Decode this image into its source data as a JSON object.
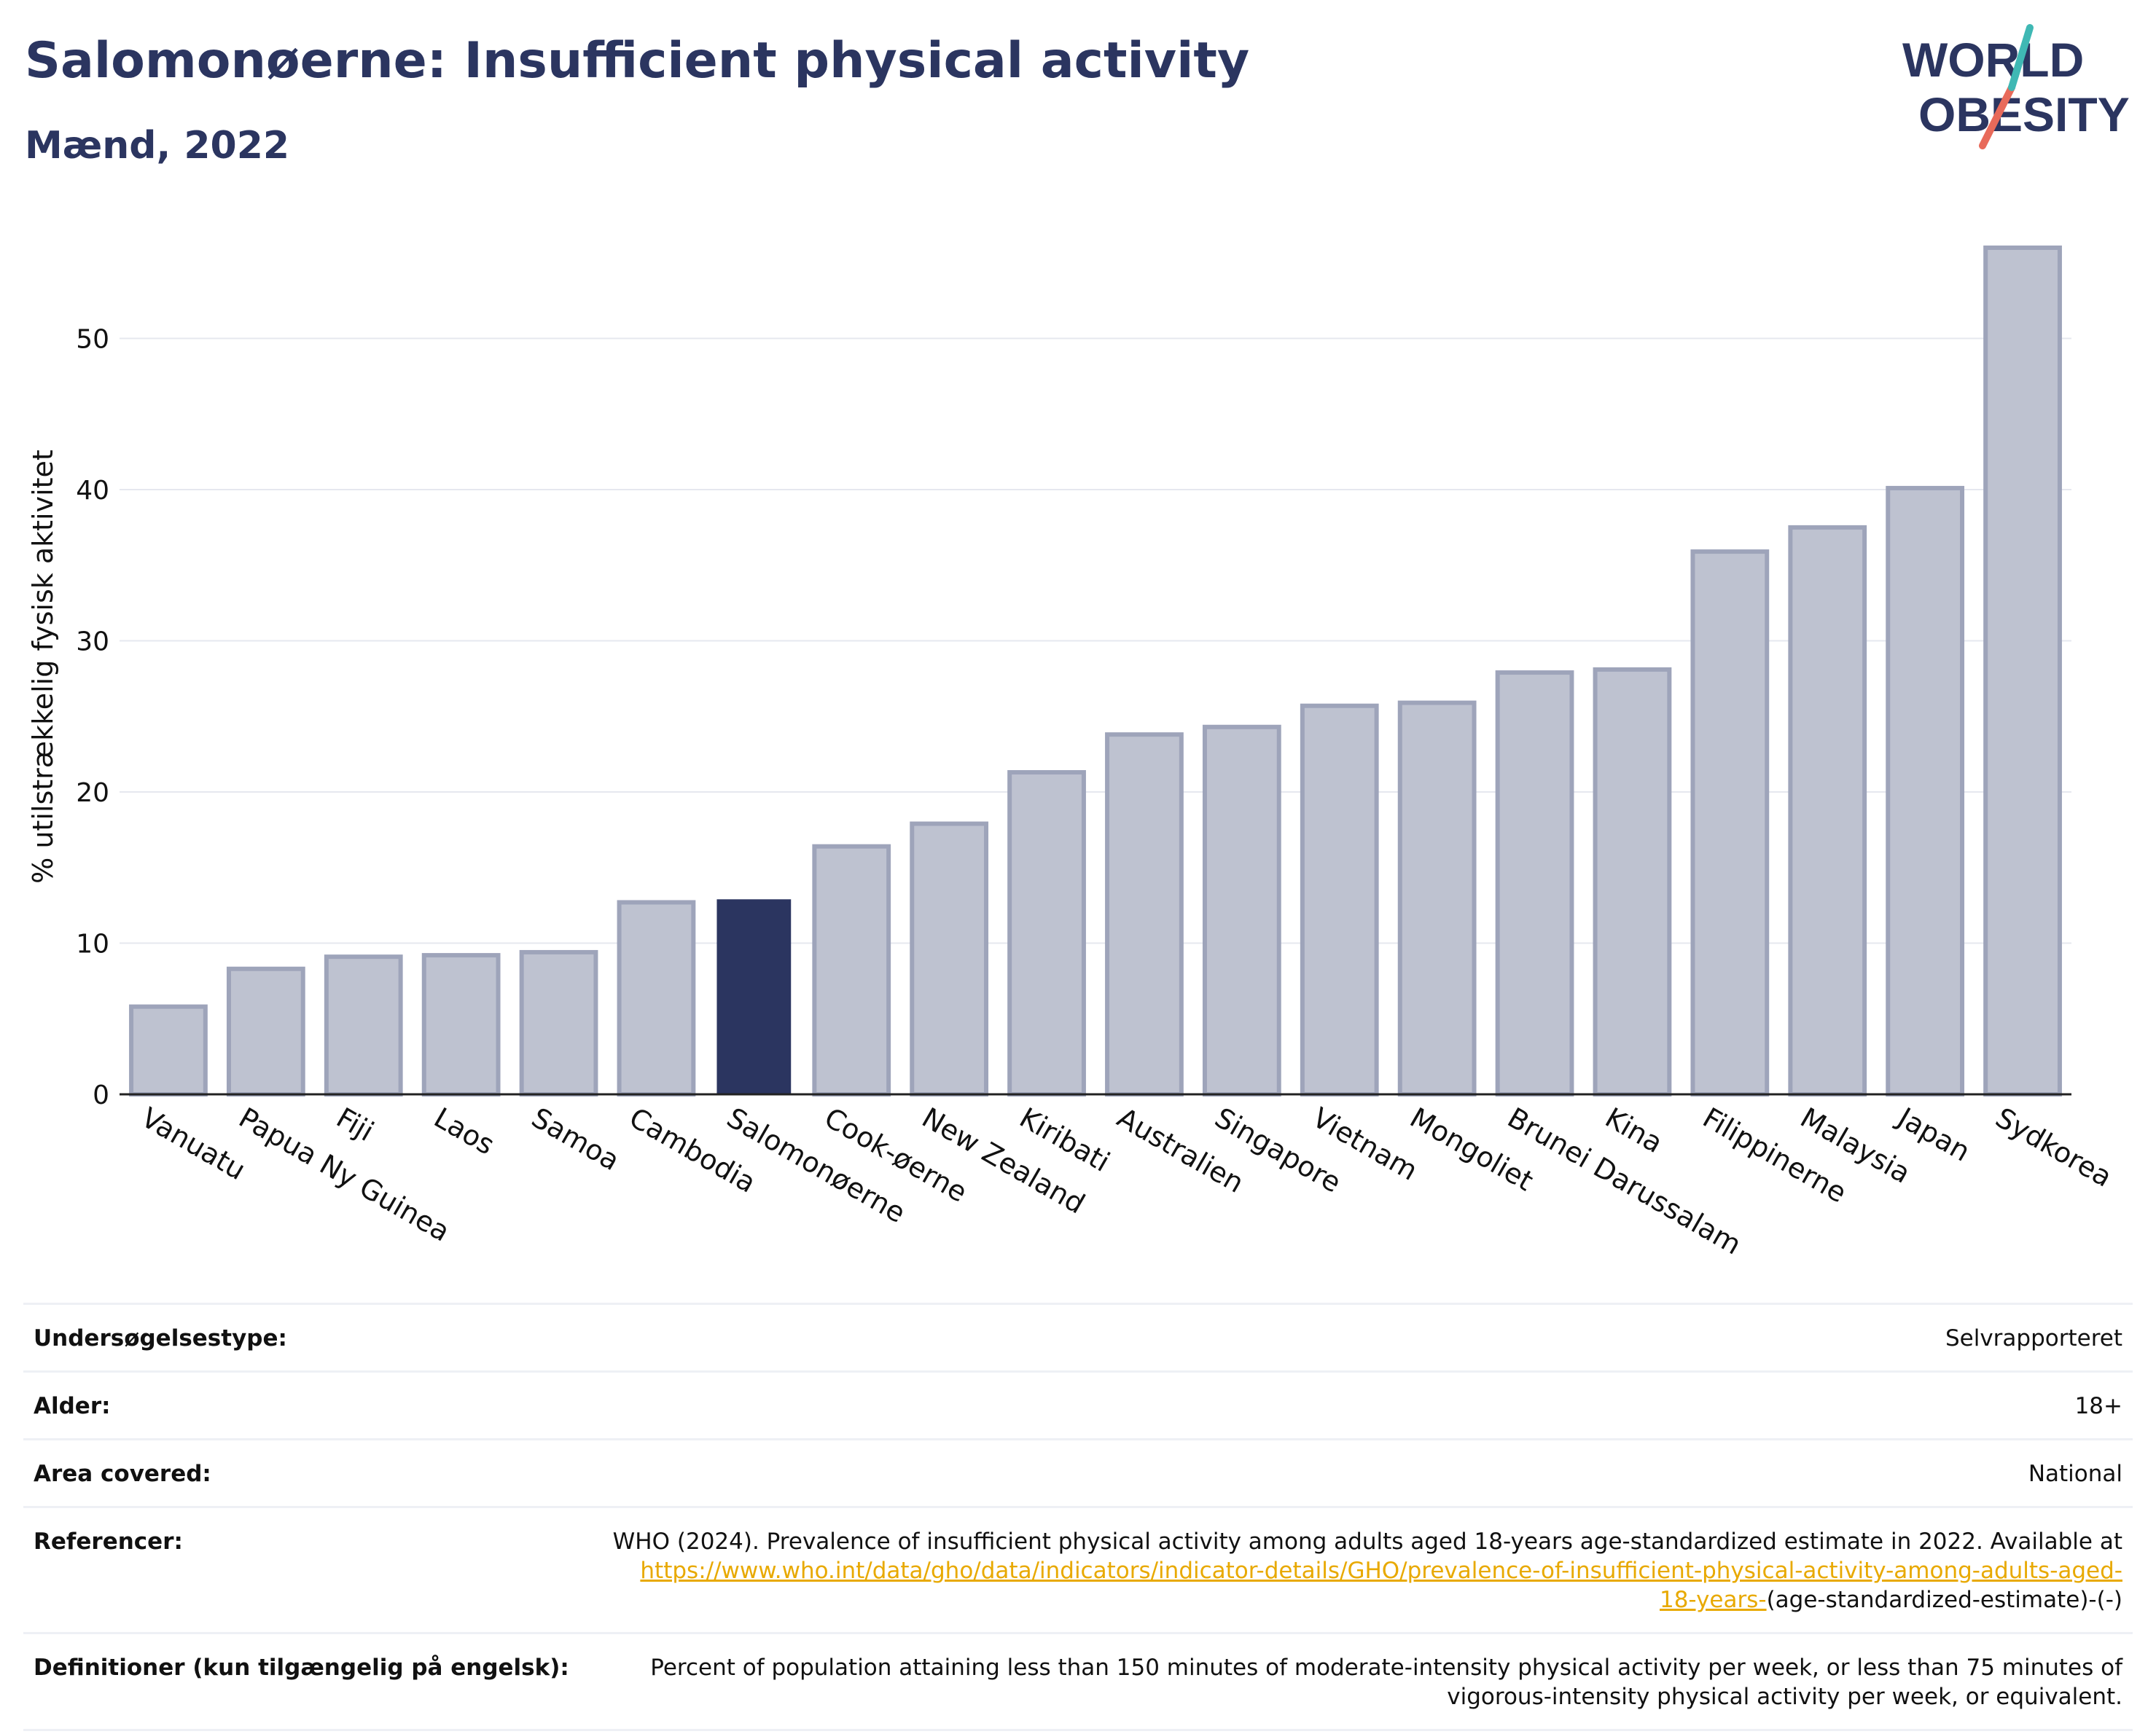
{
  "header": {
    "title": "Salomonøerne: Insufficient physical activity",
    "subtitle": "Mænd, 2022",
    "logo_line1": "WORLD",
    "logo_line2": "OBESITY"
  },
  "chart_data": {
    "type": "bar",
    "title": "Salomonøerne: Insufficient physical activity",
    "subtitle": "Mænd, 2022",
    "ylabel": "% utilstrækkelig fysisk aktivitet",
    "xlabel": "",
    "ylim": [
      0,
      58
    ],
    "yticks": [
      0,
      10,
      20,
      30,
      40,
      50
    ],
    "grid": true,
    "highlight": "Salomonøerne",
    "colors": {
      "bar": "#bec2d0",
      "bar_border": "#9ea4ba",
      "highlight": "#2b3560",
      "grid": "#e6e8ef"
    },
    "categories": [
      "Vanuatu",
      "Papua Ny Guinea",
      "Fiji",
      "Laos",
      "Samoa",
      "Cambodia",
      "Salomonøerne",
      "Cook-øerne",
      "New Zealand",
      "Kiribati",
      "Australien",
      "Singapore",
      "Vietnam",
      "Mongoliet",
      "Brunei Darussalam",
      "Kina",
      "Filippinerne",
      "Malaysia",
      "Japan",
      "Sydkorea"
    ],
    "values": [
      5.8,
      8.3,
      9.1,
      9.2,
      9.4,
      12.7,
      12.9,
      16.4,
      17.9,
      21.3,
      23.8,
      24.3,
      25.7,
      25.9,
      27.9,
      28.1,
      35.9,
      37.5,
      40.1,
      56.0
    ]
  },
  "info": {
    "rows": [
      {
        "label": "Undersøgelsestype:",
        "value": "Selvrapporteret"
      },
      {
        "label": "Alder:",
        "value": "18+"
      },
      {
        "label": "Area covered:",
        "value": "National"
      }
    ],
    "references": {
      "label": "Referencer:",
      "text": "WHO (2024). Prevalence of insufficient physical activity among adults aged 18-years age-standardized estimate in 2022. Available at",
      "link_line1": "https://www.who.int/data/gho/data/indicators/indicator-details/GHO/prevalence-of-insufficient-physical-activity-among-adults-aged-",
      "link_line2": "18-years-",
      "suffix": "(age-standardized-estimate)-(-)"
    },
    "definitions": {
      "label": "Definitioner (kun tilgængelig på engelsk):",
      "text": "Percent of population attaining less than 150 minutes of moderate-intensity physical activity per week, or less than 75 minutes of vigorous-intensity physical activity per week, or equivalent."
    }
  }
}
